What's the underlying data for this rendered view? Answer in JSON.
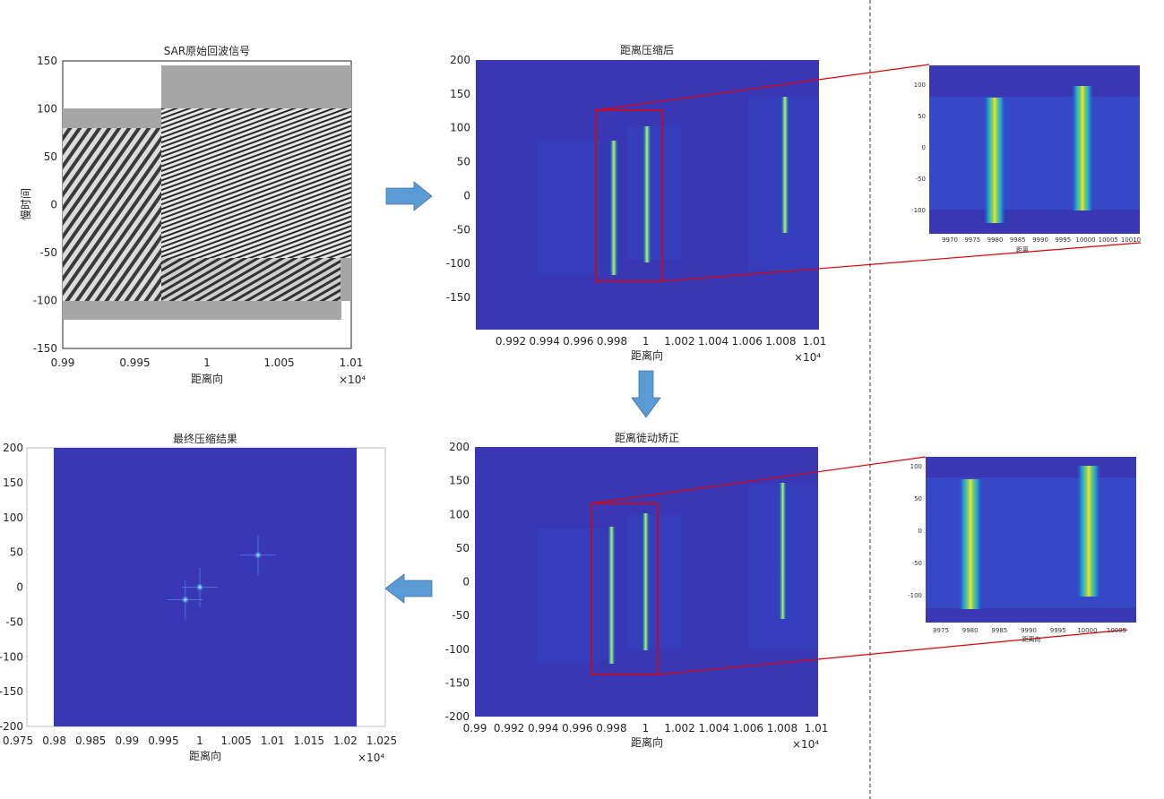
{
  "colors": {
    "parula_bg": "#3a37b4",
    "parula_mid": "#2f6ad8",
    "parula_hot": "#f2e02a",
    "parula_green": "#7ed06a",
    "arrow": "#5b9bd5",
    "zoom_frame": "#e00000",
    "echo_gray": "#a6a6a6"
  },
  "panel_echo": {
    "title": "SAR原始回波信号",
    "ylabel": "慢时间",
    "xlabel": "距离向",
    "exponent": "×10⁴"
  },
  "panel_range": {
    "title": "距离压缩后",
    "xlabel": "距离向",
    "exponent": "×10⁴"
  },
  "panel_rcmc": {
    "title": "距离徙动矫正",
    "xlabel": "距离向",
    "exponent": "×10⁴"
  },
  "panel_final": {
    "title": "最终压缩结果",
    "xlabel": "距离向",
    "exponent": "×10⁴"
  },
  "zoom_top": {
    "xlabel": "距离"
  },
  "zoom_bottom": {
    "xlabel": "距离向"
  },
  "chart_data": [
    {
      "type": "heatmap",
      "title": "SAR原始回波信号",
      "ylabel": "慢时间",
      "xlabel": "距离向",
      "xticks": [
        "0.99",
        "0.995",
        "1",
        "1.005",
        "1.01"
      ],
      "yticks": [
        "150",
        "100",
        "50",
        "0",
        "-50",
        "-100",
        "-150"
      ],
      "xlim": [
        0.99,
        1.01
      ],
      "ylim": [
        -150,
        150
      ],
      "x_scale": "×10⁴",
      "colormap": "gray"
    },
    {
      "type": "heatmap",
      "title": "距离压缩后",
      "xlabel": "距离向",
      "xticks": [
        "0.992",
        "0.994",
        "0.996",
        "0.998",
        "1",
        "1.002",
        "1.004",
        "1.006",
        "1.008",
        "1.01"
      ],
      "yticks": [
        "200",
        "150",
        "100",
        "50",
        "0",
        "-50",
        "-100",
        "-150"
      ],
      "ylim": [
        -200,
        200
      ],
      "x_scale": "×10⁴",
      "colormap": "parula",
      "targets": [
        {
          "x": 0.9981,
          "y_top": 80,
          "y_bottom": -118
        },
        {
          "x": 1.0001,
          "y_top": 100,
          "y_bottom": -98
        },
        {
          "x": 1.0081,
          "y_top": 145,
          "y_bottom": -54
        }
      ]
    },
    {
      "type": "heatmap",
      "xlabel": "距离",
      "xticks": [
        "9970",
        "9975",
        "9980",
        "9985",
        "9990",
        "9995",
        "10000",
        "10005",
        "10010"
      ],
      "yticks": [
        "100",
        "50",
        "0",
        "-50",
        "-100"
      ],
      "colormap": "parula",
      "targets": [
        {
          "x": 9980,
          "y_top": 80,
          "y_bottom": -118
        },
        {
          "x": 10000,
          "y_top": 100,
          "y_bottom": -98
        }
      ]
    },
    {
      "type": "heatmap",
      "title": "距离徙动矫正",
      "xlabel": "距离向",
      "xticks": [
        "0.99",
        "0.992",
        "0.994",
        "0.996",
        "0.998",
        "1",
        "1.002",
        "1.004",
        "1.006",
        "1.008",
        "1.01"
      ],
      "yticks": [
        "200",
        "150",
        "100",
        "50",
        "0",
        "-50",
        "-100",
        "-150",
        "-200"
      ],
      "xlim": [
        0.99,
        1.01
      ],
      "ylim": [
        -200,
        200
      ],
      "x_scale": "×10⁴",
      "colormap": "parula",
      "targets": [
        {
          "x": 0.998,
          "y_top": 82,
          "y_bottom": -118
        },
        {
          "x": 1.0,
          "y_top": 102,
          "y_bottom": -98
        },
        {
          "x": 1.008,
          "y_top": 148,
          "y_bottom": -55
        }
      ]
    },
    {
      "type": "heatmap",
      "xlabel": "距离向",
      "xticks": [
        "9975",
        "9980",
        "9985",
        "9990",
        "9995",
        "10000",
        "10005"
      ],
      "yticks": [
        "100",
        "50",
        "0",
        "-50",
        "-100"
      ],
      "colormap": "parula",
      "targets": [
        {
          "x": 9980,
          "y_top": 82,
          "y_bottom": -118
        },
        {
          "x": 10000,
          "y_top": 102,
          "y_bottom": -98
        }
      ]
    },
    {
      "type": "heatmap",
      "title": "最终压缩结果",
      "xlabel": "距离向",
      "xticks": [
        "0.975",
        "0.98",
        "0.985",
        "0.99",
        "0.995",
        "1",
        "1.005",
        "1.01",
        "1.015",
        "1.02",
        "1.025"
      ],
      "yticks": [
        "200",
        "150",
        "100",
        "50",
        "0",
        "-50",
        "-100",
        "-150",
        "-200"
      ],
      "xlim": [
        0.975,
        1.025
      ],
      "ylim": [
        -200,
        200
      ],
      "x_scale": "×10⁴",
      "colormap": "parula",
      "points": [
        {
          "x": 0.998,
          "y": -18
        },
        {
          "x": 1.0,
          "y": 0
        },
        {
          "x": 1.008,
          "y": 46
        }
      ]
    }
  ]
}
